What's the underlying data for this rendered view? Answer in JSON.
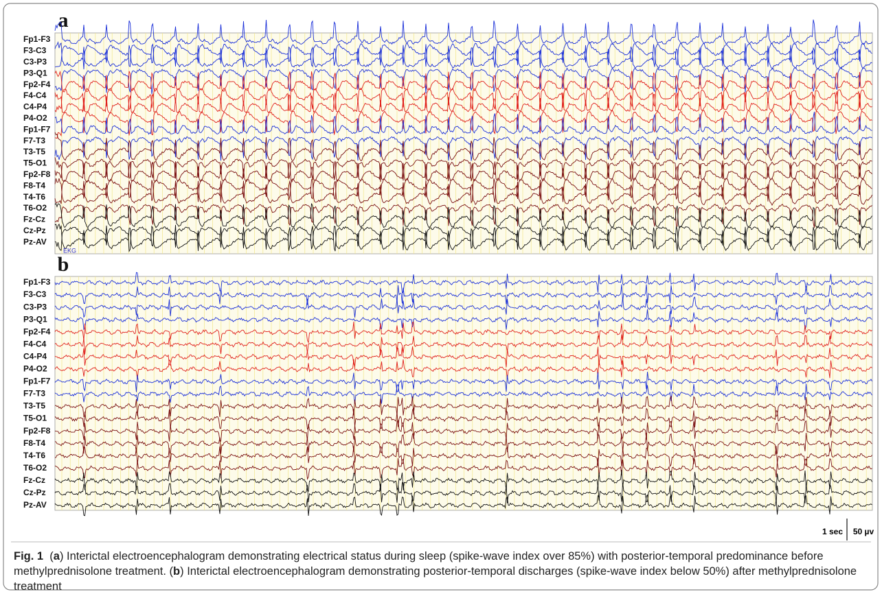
{
  "figure": {
    "panels": [
      {
        "label": "a",
        "channels": [
          "Fp1-F3",
          "F3-C3",
          "C3-P3",
          "P3-Q1",
          "Fp2-F4",
          "F4-C4",
          "C4-P4",
          "P4-O2",
          "Fp1-F7",
          "F7-T3",
          "T3-T5",
          "T5-O1",
          "Fp2-F8",
          "F8-T4",
          "T4-T6",
          "T6-O2",
          "Fz-Cz",
          "Cz-Pz",
          "Pz-AV"
        ],
        "marker": "EKG"
      },
      {
        "label": "b",
        "channels": [
          "Fp1-F3",
          "F3-C3",
          "C3-P3",
          "P3-Q1",
          "Fp2-F4",
          "F4-C4",
          "C4-P4",
          "P4-O2",
          "Fp1-F7",
          "F7-T3",
          "T3-T5",
          "T5-O1",
          "Fp2-F8",
          "F8-T4",
          "T4-T6",
          "T6-O2",
          "Fz-Cz",
          "Cz-Pz",
          "Pz-AV"
        ]
      }
    ],
    "scale": {
      "time": "1 sec",
      "amplitude": "50 µv"
    },
    "caption": {
      "label": "Fig. 1",
      "parts": [
        "(",
        "a",
        ") Interictal electroencephalogram demonstrating electrical status during sleep (spike-wave index over 85%) with posterior-temporal predominance before methylprednisolone treatment. (",
        "b",
        ") Interictal electroencephalogram demonstrating posterior-temporal discharges (spike-wave index below 50%) after methylprednisolone treatment"
      ]
    }
  }
}
